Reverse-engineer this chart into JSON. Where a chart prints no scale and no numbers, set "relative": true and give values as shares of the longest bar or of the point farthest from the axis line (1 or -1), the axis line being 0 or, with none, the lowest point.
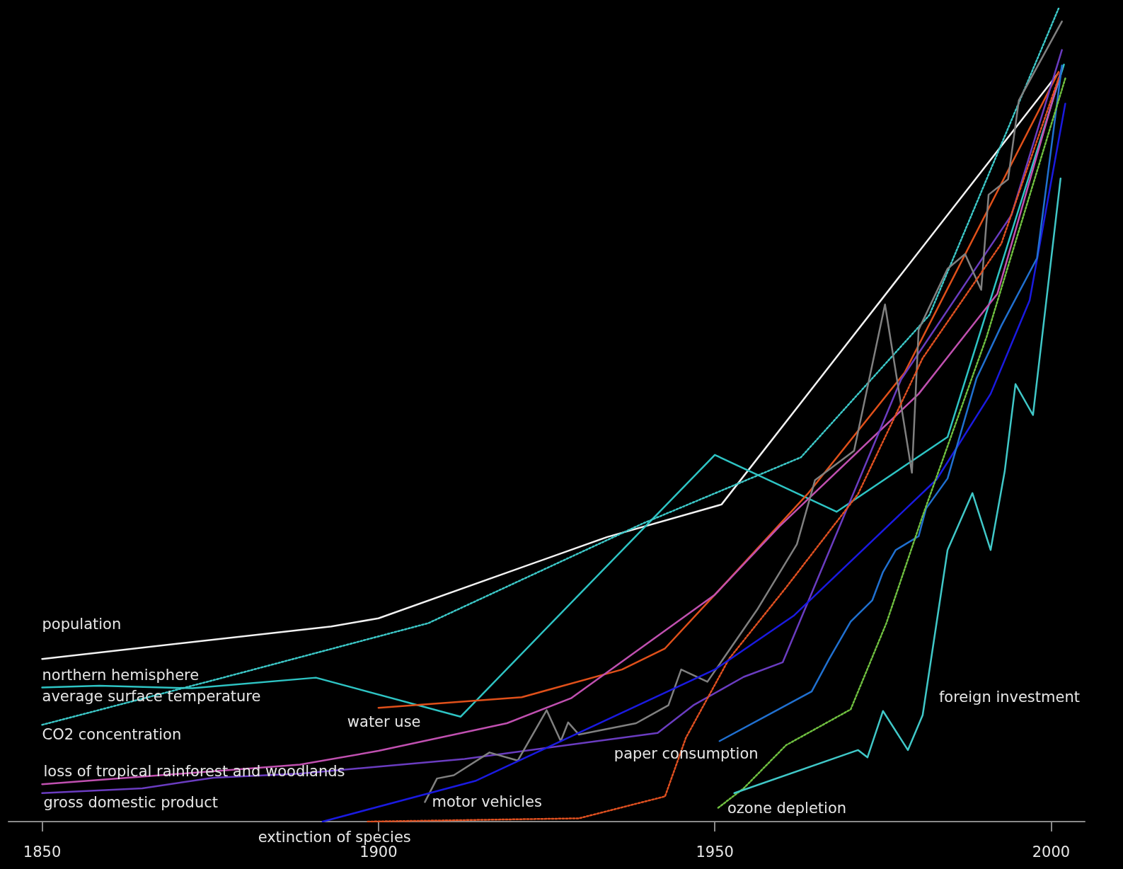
{
  "chart_data": {
    "type": "line",
    "relative": true,
    "xlim": [
      1845,
      2005
    ],
    "xticks": [
      1850,
      1900,
      1950,
      2000
    ],
    "marker": "none",
    "line_style": "solid",
    "series": [
      {
        "name": "population",
        "color": "#f2f2f2",
        "x": [
          1850,
          1893,
          1900,
          1934,
          1951,
          2001
        ],
        "values": [
          0.2,
          0.24,
          0.25,
          0.35,
          0.39,
          0.92
        ]
      },
      {
        "name": "northern hemisphere\naverage surface temperature",
        "color": "#2ec4c4",
        "x": [
          1850,
          1858.5,
          1872.3,
          1890.7,
          1912.2,
          1950,
          1968.1,
          1984.6,
          2001.9
        ],
        "values": [
          0.165,
          0.167,
          0.164,
          0.177,
          0.129,
          0.451,
          0.381,
          0.473,
          0.931
        ]
      },
      {
        "name": "CO2 concentration",
        "color": "#3cc8c8",
        "line_style": "dotted",
        "x": [
          1850,
          1875.5,
          1907.4,
          1939.4,
          1962.8,
          1981.9,
          2001.1
        ],
        "values": [
          0.119,
          0.174,
          0.244,
          0.367,
          0.448,
          0.623,
          1.0
        ]
      },
      {
        "name": "water use",
        "color": "#e0501a",
        "x": [
          1900,
          1921.3,
          1936.2,
          1942.6,
          1950,
          1963.8,
          1978.2,
          2001.1
        ],
        "values": [
          0.14,
          0.153,
          0.187,
          0.213,
          0.279,
          0.403,
          0.552,
          0.922
        ]
      },
      {
        "name": "loss of tropical rainforest and woodlands",
        "color": "#c050b0",
        "x": [
          1850,
          1888.3,
          1900,
          1919.1,
          1928.7,
          1950,
          1959.6,
          1980.3,
          1992,
          2001.6
        ],
        "values": [
          0.046,
          0.07,
          0.087,
          0.121,
          0.152,
          0.279,
          0.363,
          0.526,
          0.649,
          0.927
        ]
      },
      {
        "name": "gross domestic product",
        "color": "#6a3cc0",
        "x": [
          1850,
          1864.9,
          1875.5,
          1888.3,
          1912.8,
          1941.5,
          1946.8,
          1954.3,
          1960.1,
          1977.7,
          1994.1,
          2001.6
        ],
        "values": [
          0.035,
          0.041,
          0.054,
          0.059,
          0.077,
          0.109,
          0.143,
          0.178,
          0.196,
          0.544,
          0.746,
          0.949
        ]
      },
      {
        "name": "motor vehicles",
        "color": "#808080",
        "x": [
          1906.9,
          1908.7,
          1911.2,
          1916.5,
          1920.7,
          1925,
          1927.1,
          1928.2,
          1929.8,
          1938.3,
          1943.1,
          1945,
          1948.9,
          1956.4,
          1962.2,
          1964.9,
          1970.7,
          1975.3,
          1979.3,
          1980.3,
          1984.6,
          1987.2,
          1989.6,
          1990.7,
          1993.6,
          1995.2,
          2001.6
        ],
        "values": [
          0.024,
          0.053,
          0.057,
          0.085,
          0.075,
          0.137,
          0.099,
          0.122,
          0.107,
          0.121,
          0.143,
          0.187,
          0.172,
          0.262,
          0.341,
          0.42,
          0.456,
          0.636,
          0.429,
          0.605,
          0.68,
          0.698,
          0.654,
          0.771,
          0.79,
          0.887,
          0.984
        ]
      },
      {
        "name": "extinction of species",
        "color": "#e05020",
        "line_style": "dotted",
        "x": [
          1898.4,
          1929.8,
          1942.6,
          1945.7,
          1952.1,
          1960.6,
          1971.3,
          1980.9,
          1992.6,
          2001.1
        ],
        "values": [
          0,
          0.004,
          0.031,
          0.103,
          0.2,
          0.288,
          0.403,
          0.57,
          0.711,
          0.914
        ]
      },
      {
        "color": "#1a1ae0",
        "x": [
          1891.7,
          1914.4,
          1950,
          1961.7,
          1983,
          1991,
          1996.8,
          2002.1
        ],
        "values": [
          0,
          0.05,
          0.187,
          0.253,
          0.421,
          0.526,
          0.641,
          0.883
        ]
      },
      {
        "name": "paper consumption",
        "color": "#2070d0",
        "x": [
          1950.7,
          1964.4,
          1967,
          1970.2,
          1973.4,
          1975,
          1976.9,
          1980.3,
          1981.4,
          1984.6,
          1988.9,
          1992.6,
          1997.9,
          2001.6
        ],
        "values": [
          0.099,
          0.16,
          0.2,
          0.246,
          0.272,
          0.307,
          0.334,
          0.351,
          0.385,
          0.422,
          0.545,
          0.61,
          0.693,
          0.93
        ]
      },
      {
        "name": "ozone depletion",
        "color": "#70c040",
        "line_style": "dotted",
        "x": [
          1950.5,
          1954.3,
          1960.6,
          1970.2,
          1975.5,
          1980.9,
          1990.4,
          2002.1
        ],
        "values": [
          0.017,
          0.041,
          0.094,
          0.138,
          0.244,
          0.376,
          0.596,
          0.914
        ]
      },
      {
        "name": "foreign investment",
        "color": "#40c8c8",
        "x": [
          1952.9,
          1971.3,
          1972.7,
          1975,
          1978.7,
          1980.9,
          1984.6,
          1988.3,
          1991,
          1993.1,
          1994.7,
          1997.3,
          2001.4
        ],
        "values": [
          0.035,
          0.088,
          0.079,
          0.136,
          0.088,
          0.131,
          0.334,
          0.404,
          0.334,
          0.431,
          0.538,
          0.5,
          0.791
        ]
      }
    ]
  }
}
